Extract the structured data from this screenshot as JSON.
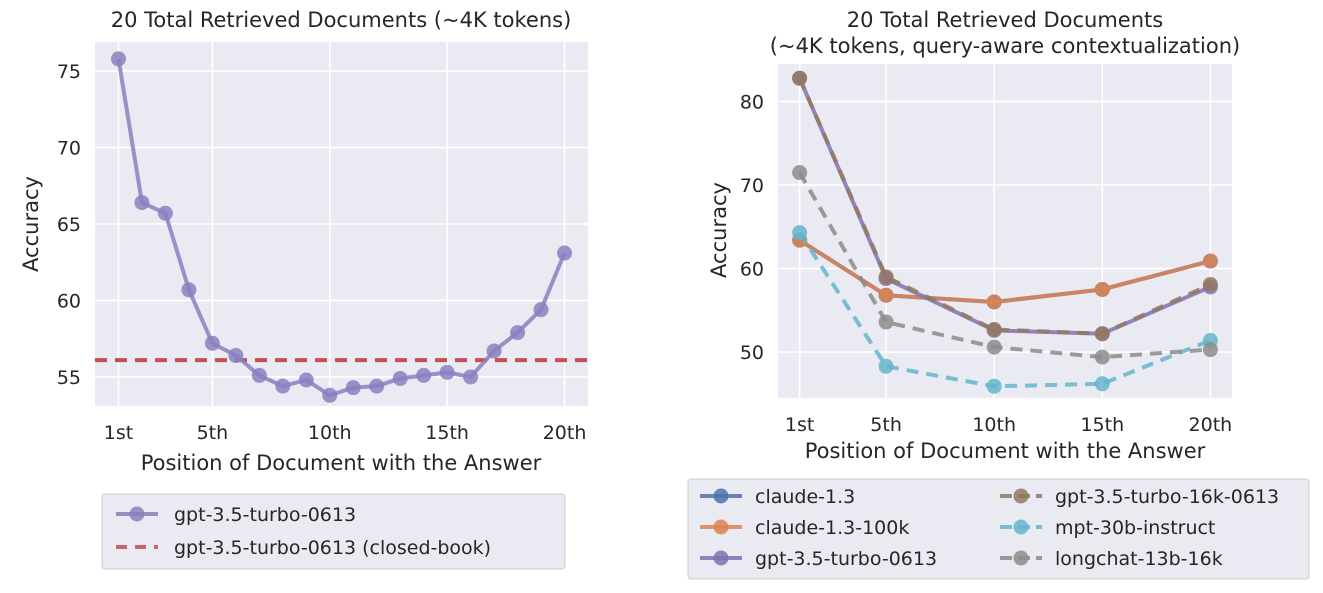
{
  "chart_data": [
    {
      "type": "line",
      "title": "20 Total Retrieved Documents (~4K tokens)",
      "xlabel": "Position of Document with the Answer",
      "ylabel": "Accuracy",
      "xlim": [
        0,
        21
      ],
      "ylim": [
        53.1,
        76.9
      ],
      "x_ticks": [
        1,
        5,
        10,
        15,
        20
      ],
      "x_tick_labels": [
        "1st",
        "5th",
        "10th",
        "15th",
        "20th"
      ],
      "y_ticks": [
        55,
        60,
        65,
        70,
        75
      ],
      "grid": true,
      "legend_position": "below",
      "series": [
        {
          "name": "gpt-3.5-turbo-0613",
          "color": "#8c7fbf",
          "style": "solid-markers",
          "x": [
            1,
            2,
            3,
            4,
            5,
            6,
            7,
            8,
            9,
            10,
            11,
            12,
            13,
            14,
            15,
            16,
            17,
            18,
            19,
            20
          ],
          "y": [
            75.8,
            66.4,
            65.7,
            60.7,
            57.2,
            56.4,
            55.1,
            54.4,
            54.8,
            53.8,
            54.3,
            54.4,
            54.9,
            55.1,
            55.3,
            55.0,
            56.7,
            57.9,
            59.4,
            63.1
          ]
        }
      ],
      "reference_lines": [
        {
          "name": "gpt-3.5-turbo-0613 (closed-book)",
          "color": "#c44e52",
          "style": "dashed",
          "y": 56.1
        }
      ]
    },
    {
      "type": "line",
      "title": [
        "20 Total Retrieved Documents",
        "(~4K tokens, query-aware contextualization)"
      ],
      "xlabel": "Position of Document with the Answer",
      "ylabel": "Accuracy",
      "xlim": [
        0,
        21
      ],
      "ylim": [
        44.5,
        84.5
      ],
      "x_ticks": [
        1,
        5,
        10,
        15,
        20
      ],
      "x_tick_labels": [
        "1st",
        "5th",
        "10th",
        "15th",
        "20th"
      ],
      "y_ticks": [
        50,
        60,
        70,
        80
      ],
      "grid": true,
      "legend_position": "below",
      "legend_columns": 2,
      "series": [
        {
          "name": "claude-1.3",
          "color": "#4c72b0",
          "style": "solid",
          "x": [
            1,
            5,
            10,
            15,
            20
          ],
          "y": [
            63.4,
            56.8,
            56.0,
            57.5,
            60.9
          ]
        },
        {
          "name": "claude-1.3-100k",
          "color": "#dd8452",
          "style": "solid",
          "x": [
            1,
            5,
            10,
            15,
            20
          ],
          "y": [
            63.4,
            56.8,
            56.0,
            57.5,
            60.9
          ]
        },
        {
          "name": "gpt-3.5-turbo-0613",
          "color": "#8172b3",
          "style": "solid",
          "x": [
            1,
            5,
            10,
            15,
            20
          ],
          "y": [
            82.8,
            58.8,
            52.6,
            52.2,
            57.8
          ]
        },
        {
          "name": "gpt-3.5-turbo-16k-0613",
          "color": "#937860",
          "style": "dashed",
          "x": [
            1,
            5,
            10,
            15,
            20
          ],
          "y": [
            82.8,
            59.0,
            52.7,
            52.2,
            58.1
          ]
        },
        {
          "name": "mpt-30b-instruct",
          "color": "#64b5cd",
          "style": "dashed",
          "x": [
            1,
            5,
            10,
            15,
            20
          ],
          "y": [
            64.3,
            48.3,
            45.9,
            46.2,
            51.4
          ]
        },
        {
          "name": "longchat-13b-16k",
          "color": "#8c8c8c",
          "style": "dashed",
          "x": [
            1,
            5,
            10,
            15,
            20
          ],
          "y": [
            71.5,
            53.6,
            50.6,
            49.4,
            50.3
          ]
        }
      ]
    }
  ]
}
